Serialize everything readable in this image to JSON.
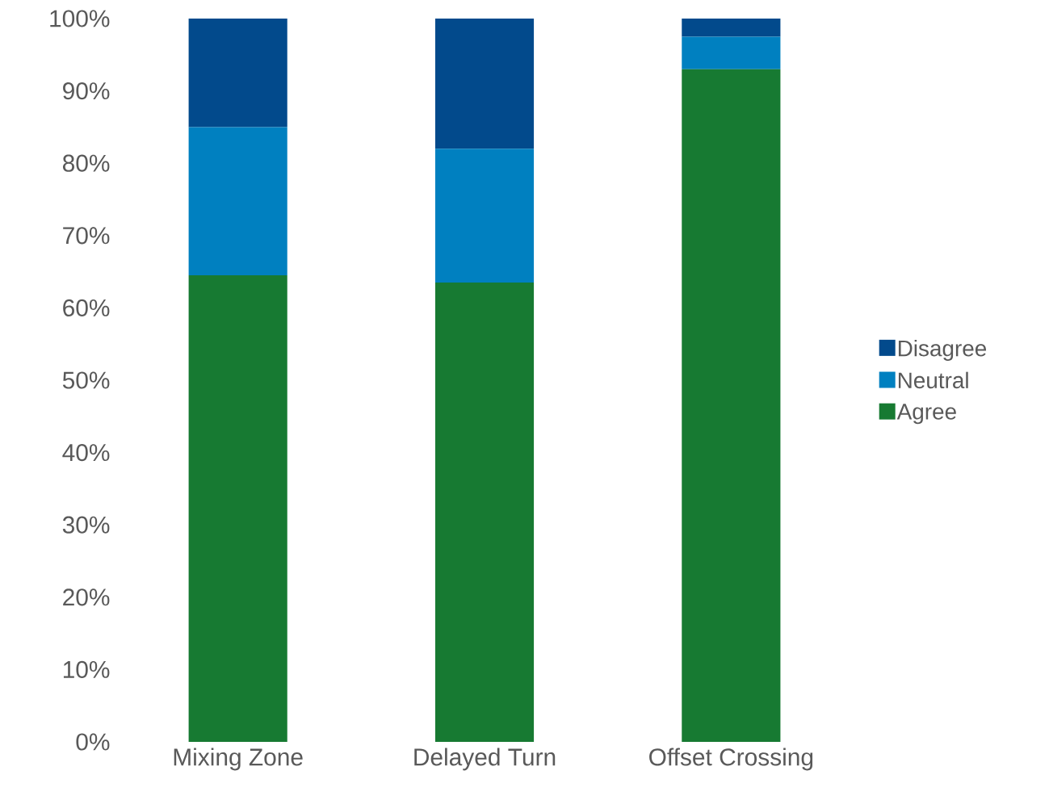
{
  "chart_data": {
    "type": "bar",
    "stacked": true,
    "categories": [
      "Mixing Zone",
      "Delayed Turn",
      "Offset Crossing"
    ],
    "series": [
      {
        "name": "Agree",
        "color": "#177a32",
        "values": [
          64.5,
          63.5,
          93
        ]
      },
      {
        "name": "Neutral",
        "color": "#0080c0",
        "values": [
          20.5,
          18.5,
          4.5
        ]
      },
      {
        "name": "Disagree",
        "color": "#024a8c",
        "values": [
          15,
          18,
          2.5
        ]
      }
    ],
    "ylim": [
      0,
      100
    ],
    "yticks": [
      {
        "value": 0,
        "label": "0%"
      },
      {
        "value": 10,
        "label": "10%"
      },
      {
        "value": 20,
        "label": "20%"
      },
      {
        "value": 30,
        "label": "30%"
      },
      {
        "value": 40,
        "label": "40%"
      },
      {
        "value": 50,
        "label": "50%"
      },
      {
        "value": 60,
        "label": "60%"
      },
      {
        "value": 70,
        "label": "70%"
      },
      {
        "value": 80,
        "label": "80%"
      },
      {
        "value": 90,
        "label": "90%"
      },
      {
        "value": 100,
        "label": "100%"
      }
    ],
    "legend": "right",
    "grid": false
  }
}
